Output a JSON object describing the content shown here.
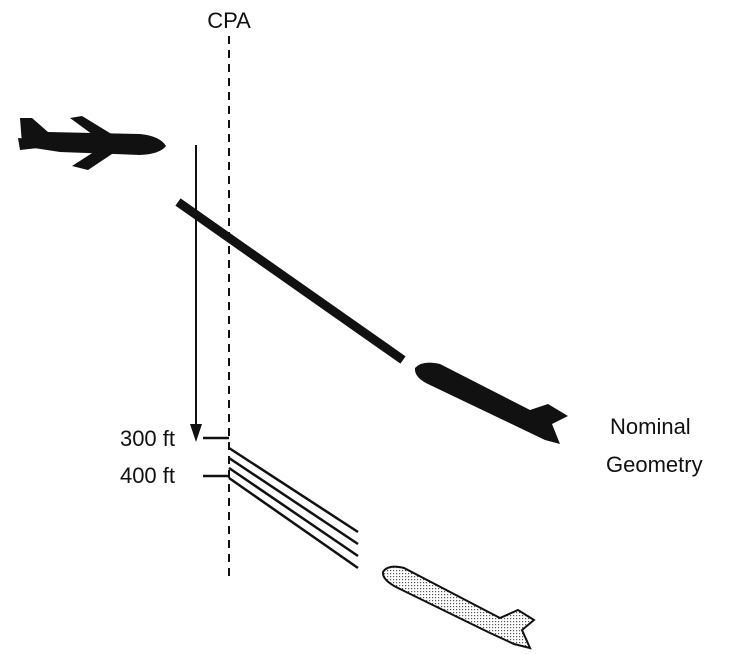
{
  "labels": {
    "cpa": "CPA",
    "alt_300": "300 ft",
    "alt_400": "400 ft",
    "nominal": "Nominal",
    "geometry": "Geometry"
  }
}
